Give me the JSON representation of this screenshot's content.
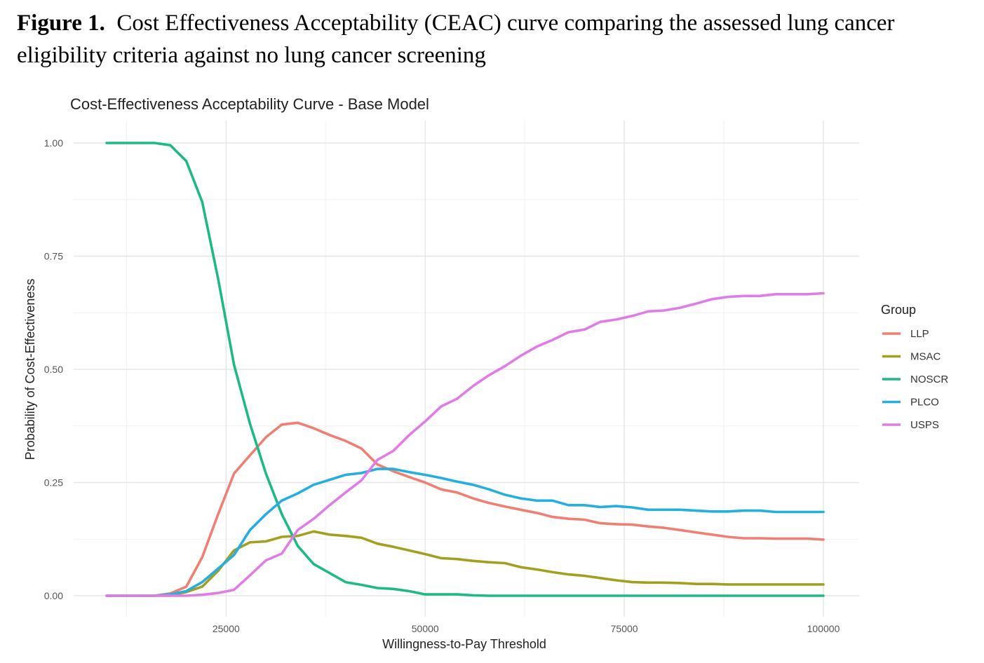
{
  "figure_caption": {
    "label": "Figure 1.",
    "text": "Cost Effectiveness Acceptability (CEAC) curve comparing the assessed lung cancer eligibility criteria against no lung cancer screening"
  },
  "chart_data": {
    "type": "line",
    "title": "Cost-Effectiveness Acceptability Curve - Base Model",
    "xlabel": "Willingness-to-Pay Threshold",
    "ylabel": "Probability of Cost-Effectiveness",
    "xlim": [
      10000,
      100000
    ],
    "ylim": [
      0,
      1
    ],
    "x_ticks": [
      25000,
      50000,
      75000,
      100000
    ],
    "y_ticks": [
      0,
      0.25,
      0.5,
      0.75,
      1.0
    ],
    "y_tick_labels": [
      "0.00",
      "0.25",
      "0.50",
      "0.75",
      "1.00"
    ],
    "grid": true,
    "legend_title": "Group",
    "legend_position": "right",
    "x": [
      10000,
      12000,
      14000,
      16000,
      18000,
      20000,
      22000,
      24000,
      26000,
      28000,
      30000,
      32000,
      34000,
      36000,
      38000,
      40000,
      42000,
      44000,
      46000,
      48000,
      50000,
      52000,
      54000,
      56000,
      58000,
      60000,
      62000,
      64000,
      66000,
      68000,
      70000,
      72000,
      74000,
      76000,
      78000,
      80000,
      82000,
      84000,
      86000,
      88000,
      90000,
      92000,
      94000,
      96000,
      98000,
      100000
    ],
    "series": [
      {
        "name": "LLP",
        "color": "#F07F73",
        "values": [
          0,
          0,
          0,
          0,
          0.005,
          0.02,
          0.085,
          0.18,
          0.27,
          0.31,
          0.35,
          0.378,
          0.382,
          0.37,
          0.355,
          0.342,
          0.325,
          0.29,
          0.275,
          0.262,
          0.25,
          0.235,
          0.228,
          0.215,
          0.205,
          0.197,
          0.19,
          0.183,
          0.174,
          0.17,
          0.168,
          0.16,
          0.158,
          0.157,
          0.153,
          0.15,
          0.145,
          0.14,
          0.135,
          0.13,
          0.127,
          0.127,
          0.126,
          0.126,
          0.126,
          0.124
        ]
      },
      {
        "name": "MSAC",
        "color": "#A3A01F",
        "values": [
          0,
          0,
          0,
          0,
          0,
          0.008,
          0.02,
          0.055,
          0.1,
          0.118,
          0.12,
          0.13,
          0.132,
          0.142,
          0.135,
          0.132,
          0.128,
          0.115,
          0.108,
          0.1,
          0.092,
          0.083,
          0.081,
          0.077,
          0.074,
          0.072,
          0.063,
          0.058,
          0.052,
          0.047,
          0.044,
          0.039,
          0.034,
          0.03,
          0.029,
          0.029,
          0.028,
          0.026,
          0.026,
          0.025,
          0.025,
          0.025,
          0.025,
          0.025,
          0.025,
          0.025
        ]
      },
      {
        "name": "NOSCR",
        "color": "#1FB888",
        "values": [
          1,
          1,
          1,
          1,
          0.995,
          0.96,
          0.87,
          0.7,
          0.51,
          0.38,
          0.27,
          0.18,
          0.11,
          0.07,
          0.05,
          0.03,
          0.024,
          0.017,
          0.015,
          0.01,
          0.003,
          0.003,
          0.003,
          0.001,
          0,
          0,
          0,
          0,
          0,
          0,
          0,
          0,
          0,
          0,
          0,
          0,
          0,
          0,
          0,
          0,
          0,
          0,
          0,
          0,
          0,
          0
        ]
      },
      {
        "name": "PLCO",
        "color": "#26AEE0",
        "values": [
          0,
          0,
          0,
          0,
          0.003,
          0.01,
          0.03,
          0.06,
          0.09,
          0.145,
          0.18,
          0.21,
          0.226,
          0.245,
          0.256,
          0.267,
          0.271,
          0.28,
          0.28,
          0.273,
          0.267,
          0.26,
          0.252,
          0.245,
          0.235,
          0.223,
          0.215,
          0.21,
          0.21,
          0.2,
          0.2,
          0.196,
          0.198,
          0.195,
          0.19,
          0.19,
          0.19,
          0.188,
          0.186,
          0.186,
          0.188,
          0.188,
          0.185,
          0.185,
          0.185,
          0.185
        ]
      },
      {
        "name": "USPS",
        "color": "#E07CE8",
        "values": [
          0,
          0,
          0,
          0,
          0,
          0,
          0.002,
          0.006,
          0.013,
          0.045,
          0.078,
          0.093,
          0.145,
          0.17,
          0.2,
          0.228,
          0.255,
          0.3,
          0.32,
          0.355,
          0.385,
          0.418,
          0.435,
          0.463,
          0.487,
          0.507,
          0.53,
          0.55,
          0.565,
          0.582,
          0.588,
          0.605,
          0.61,
          0.618,
          0.628,
          0.63,
          0.636,
          0.645,
          0.655,
          0.66,
          0.662,
          0.662,
          0.666,
          0.666,
          0.666,
          0.668
        ]
      }
    ]
  }
}
